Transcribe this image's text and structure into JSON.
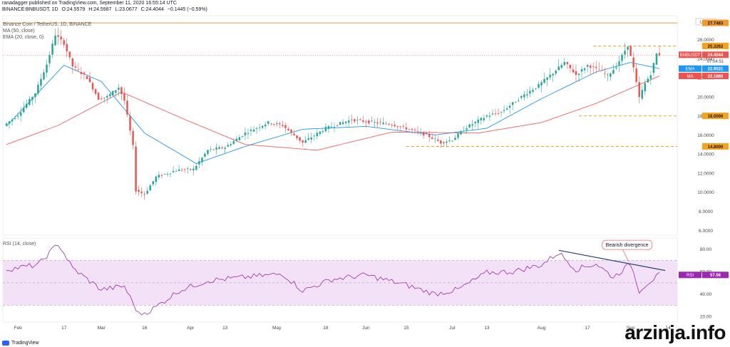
{
  "header": {
    "publish_line": "ranadagger published on TradingView.com, September 11, 2020 16:55:14 UTC",
    "symbol_line": "BINANCE:BNBUSDT, 1D",
    "ohlc": {
      "O": "O:24.5579",
      "H": "H:24.5987",
      "L": "L:23.0677",
      "C": "C:24.4044"
    },
    "change": "−0.1445 (−0.59%)"
  },
  "legend": {
    "title": "Binance Coin / TetherUS, 1D, BINANCE",
    "ma": "MA (50, close)",
    "ema": "EMA (20, close, 0)",
    "rsi": "RSI (14, close)"
  },
  "colors": {
    "up": "#26a69a",
    "down": "#ef5350",
    "ma": "#f06060",
    "ema": "#2196f3",
    "rsi": "#9c27b0",
    "rsi_band": "#f3e1f7",
    "level": "#f7a21b",
    "resistance": "#ef9a2a",
    "divergence": "#2a3f7f"
  },
  "axis": {
    "price_ticks": [
      "6.0000",
      "8.0000",
      "10.0000",
      "12.0000",
      "14.0000",
      "16.0000",
      "18.0000",
      "20.0000",
      "22.0000",
      "24.0000",
      "26.0000",
      "28.0000"
    ],
    "rsi_ticks": [
      "20.00",
      "40.00",
      "60.00",
      "80.00"
    ],
    "currency_label": "USDT",
    "x_labels": [
      "Feb",
      "17",
      "Mar",
      "16",
      "Apr",
      "13",
      "May",
      "18",
      "Jun",
      "15",
      "Jul",
      "13",
      "Aug",
      "17",
      "Sep",
      "14"
    ]
  },
  "price_tags": {
    "top_level": "27.7483",
    "resistance": "25.3262",
    "last_symbol": "BNBUSDT",
    "last": "24.4044",
    "countdown": "07:04:51",
    "ema_label": "EMA",
    "ema": "22.9531",
    "ma_label": "MA",
    "ma": "22.1860",
    "support_mid": "18.0000",
    "support_low": "14.8000",
    "rsi_label": "RSI",
    "rsi": "57.06"
  },
  "annotation": {
    "text": "Bearish divergence"
  },
  "watermark": "arzinja.info",
  "tv_brand": "TradingView",
  "chart_data": {
    "type": "candlestick",
    "title": "Binance Coin / TetherUS, 1D, BINANCE",
    "x_range": [
      "2020-01-28",
      "2020-09-11"
    ],
    "ylim": [
      5.5,
      28.5
    ],
    "rsi_ylim": [
      15,
      90
    ],
    "horizontal_levels": [
      27.7483,
      25.3262,
      18.0,
      14.8
    ],
    "rsi_band": [
      30,
      70
    ],
    "keypoints": [
      {
        "date": "2020-01-28",
        "close": 17.2
      },
      {
        "date": "2020-02-01",
        "close": 18.1
      },
      {
        "date": "2020-02-07",
        "close": 20.4
      },
      {
        "date": "2020-02-11",
        "close": 23.4
      },
      {
        "date": "2020-02-14",
        "close": 26.5
      },
      {
        "date": "2020-02-17",
        "close": 25.6
      },
      {
        "date": "2020-02-20",
        "close": 23.2
      },
      {
        "date": "2020-02-25",
        "close": 22.0
      },
      {
        "date": "2020-02-29",
        "close": 19.8
      },
      {
        "date": "2020-03-03",
        "close": 20.0
      },
      {
        "date": "2020-03-07",
        "close": 21.0
      },
      {
        "date": "2020-03-09",
        "close": 19.6
      },
      {
        "date": "2020-03-12",
        "close": 14.8
      },
      {
        "date": "2020-03-13",
        "close": 10.2
      },
      {
        "date": "2020-03-16",
        "close": 9.8
      },
      {
        "date": "2020-03-20",
        "close": 11.6
      },
      {
        "date": "2020-03-27",
        "close": 12.3
      },
      {
        "date": "2020-04-02",
        "close": 12.4
      },
      {
        "date": "2020-04-07",
        "close": 14.4
      },
      {
        "date": "2020-04-13",
        "close": 14.7
      },
      {
        "date": "2020-04-20",
        "close": 16.2
      },
      {
        "date": "2020-04-28",
        "close": 17.3
      },
      {
        "date": "2020-05-03",
        "close": 17.0
      },
      {
        "date": "2020-05-10",
        "close": 15.2
      },
      {
        "date": "2020-05-18",
        "close": 16.7
      },
      {
        "date": "2020-05-27",
        "close": 17.6
      },
      {
        "date": "2020-06-01",
        "close": 17.4
      },
      {
        "date": "2020-06-10",
        "close": 17.1
      },
      {
        "date": "2020-06-16",
        "close": 16.6
      },
      {
        "date": "2020-06-22",
        "close": 16.0
      },
      {
        "date": "2020-06-27",
        "close": 15.2
      },
      {
        "date": "2020-07-01",
        "close": 15.5
      },
      {
        "date": "2020-07-06",
        "close": 16.8
      },
      {
        "date": "2020-07-13",
        "close": 18.0
      },
      {
        "date": "2020-07-18",
        "close": 18.4
      },
      {
        "date": "2020-07-25",
        "close": 20.0
      },
      {
        "date": "2020-07-31",
        "close": 21.2
      },
      {
        "date": "2020-08-05",
        "close": 22.5
      },
      {
        "date": "2020-08-09",
        "close": 23.6
      },
      {
        "date": "2020-08-13",
        "close": 22.3
      },
      {
        "date": "2020-08-17",
        "close": 23.3
      },
      {
        "date": "2020-08-21",
        "close": 22.8
      },
      {
        "date": "2020-08-24",
        "close": 22.2
      },
      {
        "date": "2020-08-27",
        "close": 23.2
      },
      {
        "date": "2020-08-31",
        "close": 25.4
      },
      {
        "date": "2020-09-02",
        "close": 23.0
      },
      {
        "date": "2020-09-04",
        "close": 19.9
      },
      {
        "date": "2020-09-06",
        "close": 21.4
      },
      {
        "date": "2020-09-08",
        "close": 22.4
      },
      {
        "date": "2020-09-10",
        "close": 24.5
      },
      {
        "date": "2020-09-11",
        "close": 24.4044
      }
    ],
    "ema20_keypoints": [
      {
        "date": "2020-01-28",
        "value": 16.9
      },
      {
        "date": "2020-02-17",
        "value": 23.3
      },
      {
        "date": "2020-03-01",
        "value": 21.6
      },
      {
        "date": "2020-03-16",
        "value": 16.2
      },
      {
        "date": "2020-04-03",
        "value": 13.0
      },
      {
        "date": "2020-04-20",
        "value": 14.8
      },
      {
        "date": "2020-05-10",
        "value": 16.6
      },
      {
        "date": "2020-06-01",
        "value": 16.9
      },
      {
        "date": "2020-06-25",
        "value": 16.0
      },
      {
        "date": "2020-07-13",
        "value": 16.7
      },
      {
        "date": "2020-08-01",
        "value": 19.8
      },
      {
        "date": "2020-08-20",
        "value": 22.6
      },
      {
        "date": "2020-09-01",
        "value": 23.6
      },
      {
        "date": "2020-09-11",
        "value": 22.9531
      }
    ],
    "ma50_keypoints": [
      {
        "date": "2020-01-28",
        "value": 15.0
      },
      {
        "date": "2020-02-15",
        "value": 17.0
      },
      {
        "date": "2020-03-08",
        "value": 20.5
      },
      {
        "date": "2020-03-31",
        "value": 17.5
      },
      {
        "date": "2020-04-20",
        "value": 15.0
      },
      {
        "date": "2020-05-15",
        "value": 14.4
      },
      {
        "date": "2020-06-10",
        "value": 16.3
      },
      {
        "date": "2020-07-10",
        "value": 16.2
      },
      {
        "date": "2020-08-01",
        "value": 17.3
      },
      {
        "date": "2020-08-20",
        "value": 19.3
      },
      {
        "date": "2020-09-11",
        "value": 22.186
      }
    ],
    "rsi_keypoints": [
      {
        "date": "2020-01-28",
        "value": 62
      },
      {
        "date": "2020-02-08",
        "value": 66
      },
      {
        "date": "2020-02-15",
        "value": 85
      },
      {
        "date": "2020-02-20",
        "value": 63
      },
      {
        "date": "2020-03-01",
        "value": 44
      },
      {
        "date": "2020-03-09",
        "value": 47
      },
      {
        "date": "2020-03-14",
        "value": 22
      },
      {
        "date": "2020-03-18",
        "value": 25
      },
      {
        "date": "2020-03-28",
        "value": 43
      },
      {
        "date": "2020-04-07",
        "value": 52
      },
      {
        "date": "2020-04-20",
        "value": 55
      },
      {
        "date": "2020-05-03",
        "value": 58
      },
      {
        "date": "2020-05-10",
        "value": 43
      },
      {
        "date": "2020-05-20",
        "value": 53
      },
      {
        "date": "2020-06-01",
        "value": 57
      },
      {
        "date": "2020-06-15",
        "value": 48
      },
      {
        "date": "2020-06-25",
        "value": 40
      },
      {
        "date": "2020-07-03",
        "value": 44
      },
      {
        "date": "2020-07-13",
        "value": 59
      },
      {
        "date": "2020-07-22",
        "value": 60
      },
      {
        "date": "2020-08-01",
        "value": 66
      },
      {
        "date": "2020-08-07",
        "value": 77
      },
      {
        "date": "2020-08-13",
        "value": 62
      },
      {
        "date": "2020-08-20",
        "value": 67
      },
      {
        "date": "2020-08-26",
        "value": 55
      },
      {
        "date": "2020-09-01",
        "value": 67
      },
      {
        "date": "2020-09-04",
        "value": 43
      },
      {
        "date": "2020-09-07",
        "value": 50
      },
      {
        "date": "2020-09-11",
        "value": 57.06
      }
    ]
  }
}
